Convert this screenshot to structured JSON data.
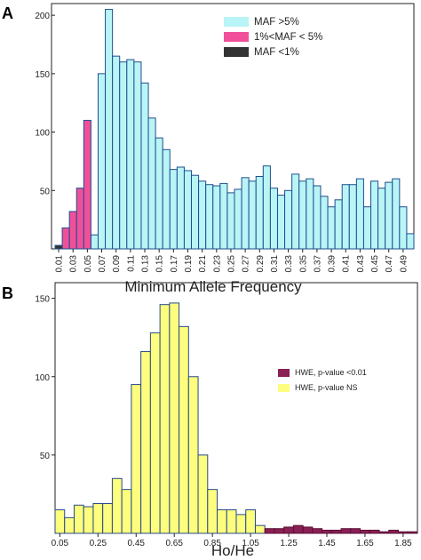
{
  "chart_data": [
    {
      "panel_label": "A",
      "type": "bar",
      "xlabel": "Minimum Allele Frequency",
      "ylabel": "",
      "ylim": [
        0,
        210
      ],
      "yticks": [
        50,
        100,
        150,
        200
      ],
      "grid": false,
      "legend": "top-right",
      "x": [
        0.01,
        0.02,
        0.03,
        0.04,
        0.05,
        0.06,
        0.07,
        0.08,
        0.09,
        0.1,
        0.11,
        0.12,
        0.13,
        0.14,
        0.15,
        0.16,
        0.17,
        0.18,
        0.19,
        0.2,
        0.21,
        0.22,
        0.23,
        0.24,
        0.25,
        0.26,
        0.27,
        0.28,
        0.29,
        0.3,
        0.31,
        0.32,
        0.33,
        0.34,
        0.35,
        0.36,
        0.37,
        0.38,
        0.39,
        0.4,
        0.41,
        0.42,
        0.43,
        0.44,
        0.45,
        0.46,
        0.47,
        0.48,
        0.49,
        0.5
      ],
      "xtick_labels": [
        "0.01",
        "0.03",
        "0.05",
        "0.07",
        "0.09",
        "0.11",
        "0.13",
        "0.15",
        "0.17",
        "0.19",
        "0.21",
        "0.23",
        "0.25",
        "0.27",
        "0.29",
        "0.31",
        "0.33",
        "0.35",
        "0.37",
        "0.39",
        "0.41",
        "0.43",
        "0.45",
        "0.47",
        "0.49"
      ],
      "series": [
        {
          "name": "MAF >5%",
          "color": "#b9f4f6",
          "values": [
            0,
            0,
            0,
            0,
            0,
            12,
            150,
            205,
            165,
            160,
            162,
            160,
            142,
            112,
            95,
            85,
            68,
            70,
            67,
            63,
            58,
            55,
            54,
            56,
            48,
            51,
            61,
            58,
            62,
            71,
            52,
            46,
            50,
            64,
            58,
            60,
            54,
            45,
            36,
            42,
            55,
            55,
            60,
            36,
            58,
            52,
            57,
            60,
            36,
            13
          ]
        },
        {
          "name": "1%<MAF < 5%",
          "color": "#f0509a",
          "values": [
            0,
            18,
            32,
            52,
            110,
            0,
            0,
            0,
            0,
            0,
            0,
            0,
            0,
            0,
            0,
            0,
            0,
            0,
            0,
            0,
            0,
            0,
            0,
            0,
            0,
            0,
            0,
            0,
            0,
            0,
            0,
            0,
            0,
            0,
            0,
            0,
            0,
            0,
            0,
            0,
            0,
            0,
            0,
            0,
            0,
            0,
            0,
            0,
            0,
            0
          ]
        },
        {
          "name": "MAF <1%",
          "color": "#333333",
          "values": [
            3,
            0,
            0,
            0,
            0,
            0,
            0,
            0,
            0,
            0,
            0,
            0,
            0,
            0,
            0,
            0,
            0,
            0,
            0,
            0,
            0,
            0,
            0,
            0,
            0,
            0,
            0,
            0,
            0,
            0,
            0,
            0,
            0,
            0,
            0,
            0,
            0,
            0,
            0,
            0,
            0,
            0,
            0,
            0,
            0,
            0,
            0,
            0,
            0,
            0
          ]
        }
      ]
    },
    {
      "panel_label": "B",
      "type": "bar",
      "xlabel": "Ho/He",
      "ylabel": "",
      "ylim": [
        0,
        160
      ],
      "yticks": [
        50,
        100,
        150
      ],
      "grid": false,
      "legend": "right",
      "x": [
        0.05,
        0.1,
        0.15,
        0.2,
        0.25,
        0.3,
        0.35,
        0.4,
        0.45,
        0.5,
        0.55,
        0.6,
        0.65,
        0.7,
        0.75,
        0.8,
        0.85,
        0.9,
        0.95,
        1.0,
        1.05,
        1.1,
        1.15,
        1.2,
        1.25,
        1.3,
        1.35,
        1.4,
        1.45,
        1.5,
        1.55,
        1.6,
        1.65,
        1.7,
        1.75,
        1.8,
        1.85,
        1.9
      ],
      "xtick_labels": [
        "0.05",
        "0.25",
        "0.45",
        "0.65",
        "0.85",
        "1.05",
        "1.25",
        "1.45",
        "1.65",
        "1.85"
      ],
      "series": [
        {
          "name": "HWE, p-value NS",
          "color": "#fdfd7e",
          "values": [
            15,
            10,
            18,
            17,
            19,
            19,
            35,
            28,
            95,
            116,
            128,
            146,
            147,
            132,
            100,
            50,
            28,
            15,
            15,
            12,
            15,
            5,
            0,
            0,
            0,
            0,
            0,
            0,
            0,
            0,
            0,
            0,
            0,
            0,
            0,
            0,
            0,
            0
          ]
        },
        {
          "name": "HWE, p-value <0.01",
          "color": "#8b2055",
          "values": [
            0,
            0,
            0,
            0,
            0,
            0,
            0,
            0,
            0,
            0,
            0,
            0,
            0,
            0,
            0,
            0,
            0,
            0,
            0,
            0,
            0,
            0,
            3,
            3,
            4,
            5,
            4,
            3,
            2,
            2,
            3,
            3,
            2,
            2,
            1,
            2,
            1,
            1
          ]
        }
      ]
    }
  ]
}
